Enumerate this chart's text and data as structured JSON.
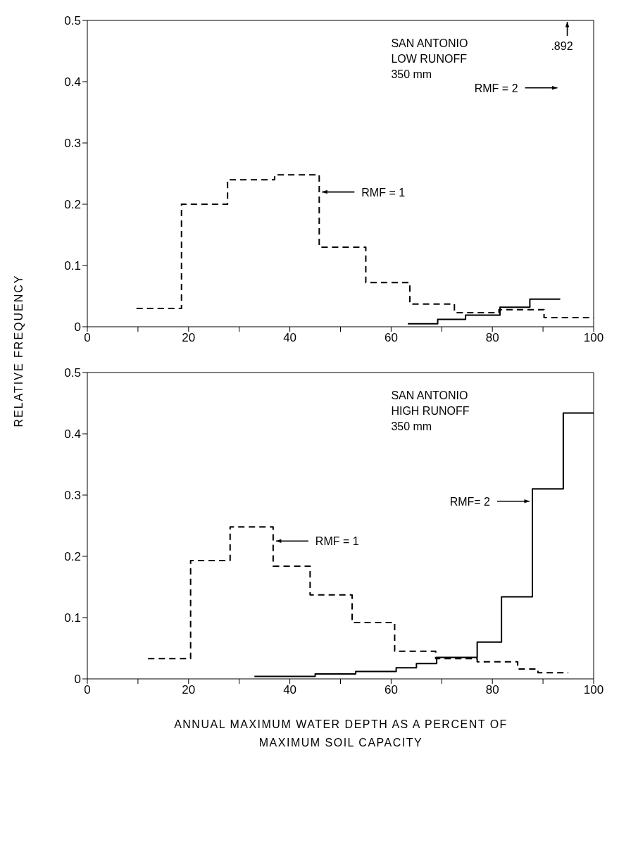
{
  "chart_data": [
    {
      "type": "step",
      "title": "SAN ANTONIO\nLOW RUNOFF\n350 mm",
      "ylabel": "RELATIVE FREQUENCY",
      "xlim": [
        0,
        100
      ],
      "xticks": [
        0,
        {
          "value": 10,
          "label": null
        },
        20,
        {
          "value": 30,
          "label": null
        },
        40,
        {
          "value": 50,
          "label": null
        },
        60,
        {
          "value": 70,
          "label": null
        },
        80,
        {
          "value": 90,
          "label": null
        },
        100
      ],
      "ylim": [
        0,
        0.5
      ],
      "yticks": [
        0,
        0.1,
        0.2,
        0.3,
        0.4,
        0.5
      ],
      "series": [
        {
          "color": "#000000",
          "line_style": "dashed",
          "x": [
            9.7,
            18.6,
            27.7,
            37,
            45.8,
            55,
            63.7,
            72.5,
            81.3,
            90.2,
            100
          ],
          "values": [
            0.03,
            0.2,
            0.24,
            0.248,
            0.13,
            0.072,
            0.037,
            0.023,
            0.028,
            0.015,
            0.015
          ]
        },
        {
          "color": "#000000",
          "line_style": "solid",
          "x": [
            63.3,
            69.2,
            74.7,
            81.5,
            87.4,
            93.4
          ],
          "values": [
            0.005,
            0.012,
            0.019,
            0.032,
            0.045,
            0.045
          ]
        }
      ],
      "annotations": [
        "RMF = 1",
        "RMF = 2",
        ".892"
      ]
    },
    {
      "type": "step",
      "title": "SAN ANTONIO\nHIGH RUNOFF\n350 mm",
      "xlabel": "ANNUAL MAXIMUM WATER DEPTH AS A PERCENT OF\nMAXIMUM SOIL CAPACITY",
      "xlim": [
        0,
        100
      ],
      "xticks": [
        0,
        {
          "value": 10,
          "label": null
        },
        20,
        {
          "value": 30,
          "label": null
        },
        40,
        {
          "value": 50,
          "label": null
        },
        60,
        {
          "value": 70,
          "label": null
        },
        80,
        {
          "value": 90,
          "label": null
        },
        100
      ],
      "ylim": [
        0,
        0.5
      ],
      "yticks": [
        0,
        0.1,
        0.2,
        0.3,
        0.4,
        0.5
      ],
      "series": [
        {
          "color": "#000000",
          "line_style": "dashed",
          "x": [
            12,
            20.4,
            28.2,
            36.7,
            44,
            52.3,
            60.7,
            68.8,
            77,
            85,
            89,
            95
          ],
          "values": [
            0.033,
            0.193,
            0.248,
            0.184,
            0.137,
            0.092,
            0.045,
            0.033,
            0.028,
            0.016,
            0.01,
            0.01
          ]
        },
        {
          "color": "#000000",
          "line_style": "solid",
          "x": [
            33,
            45,
            53,
            61,
            65,
            69,
            77,
            81.8,
            87.9,
            94,
            100
          ],
          "values": [
            0.004,
            0.008,
            0.012,
            0.018,
            0.025,
            0.035,
            0.06,
            0.134,
            0.31,
            0.434,
            0.434
          ]
        }
      ],
      "annotations": [
        "RMF = 1",
        "RMF= 2"
      ]
    }
  ]
}
